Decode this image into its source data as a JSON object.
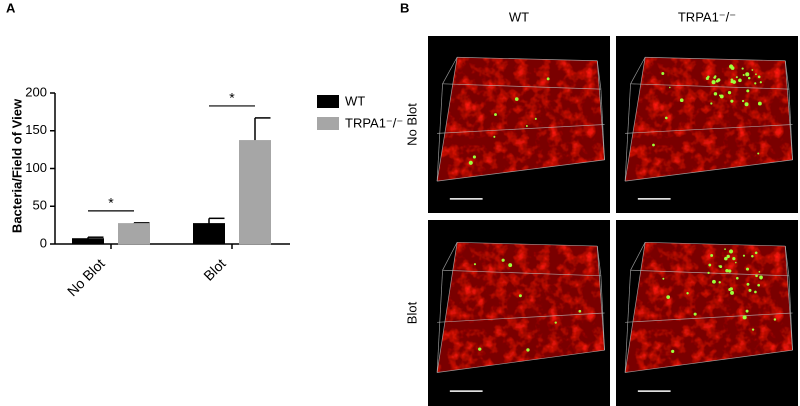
{
  "chart_data": {
    "type": "bar",
    "panel_label": "A",
    "y_label": "Bacteria/Field of View",
    "categories": [
      "No Blot",
      "Blot"
    ],
    "series": [
      {
        "name": "WT",
        "color": "#000000",
        "values": [
          7,
          27
        ],
        "errors": [
          2,
          7
        ]
      },
      {
        "name": "TRPA1⁻/⁻",
        "color": "#a6a6a6",
        "values": [
          27,
          137
        ],
        "errors": [
          1,
          30
        ]
      }
    ],
    "ylim": [
      0,
      200
    ],
    "yticks": [
      0,
      50,
      100,
      150,
      200
    ],
    "annotations": [
      {
        "text": "*",
        "category": "No Blot"
      },
      {
        "text": "*",
        "category": "Blot"
      }
    ]
  },
  "image_grid": {
    "panel_label": "B",
    "columns": [
      "WT",
      "TRPA1⁻/⁻"
    ],
    "rows": [
      "No Blot",
      "Blot"
    ]
  }
}
